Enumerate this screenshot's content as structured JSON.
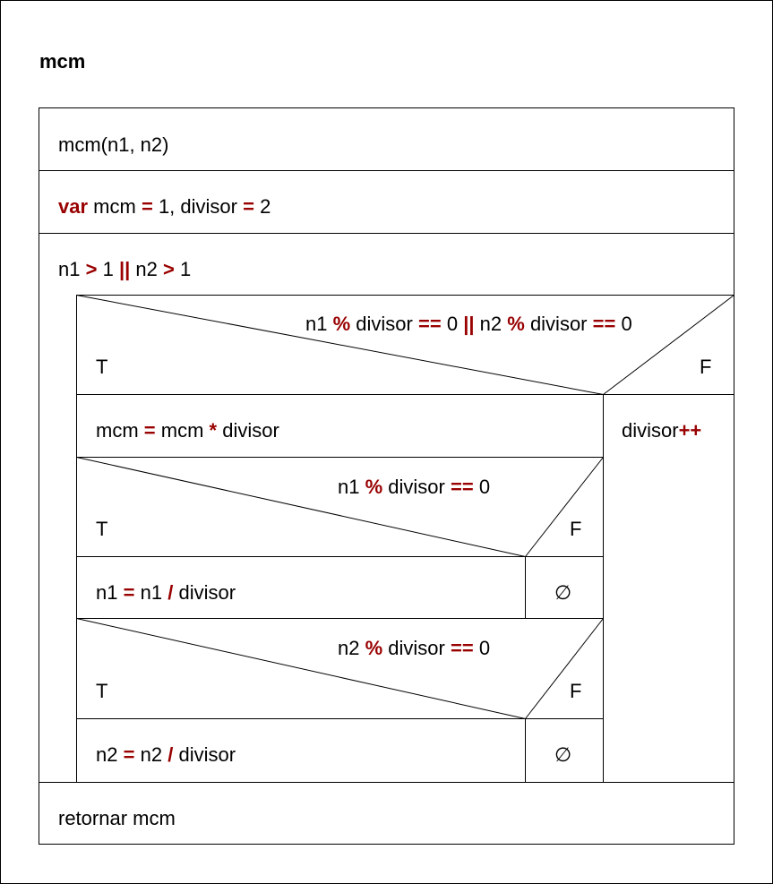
{
  "title": "mcm",
  "ops": {
    "assign": "=",
    "gt": ">",
    "or": "||",
    "mod": "%",
    "eq": "==",
    "mul": "*",
    "div": "/",
    "inc": "++"
  },
  "blocks": {
    "header": "mcm(n1, n2)",
    "decl": {
      "keyword": "var",
      "a": "mcm",
      "b": "1, divisor",
      "c": "2"
    },
    "loop": {
      "a": "n1",
      "b": "1",
      "c": "n2",
      "d": "1"
    },
    "cond1": {
      "a": "n1",
      "b": "divisor",
      "c": "0",
      "d": "n2",
      "e": "divisor",
      "f": "0"
    },
    "assign_mcm": {
      "a": "mcm",
      "b": "mcm",
      "c": "divisor"
    },
    "cond2": {
      "a": "n1",
      "b": "divisor",
      "c": "0"
    },
    "assign_n1": {
      "a": "n1",
      "b": "n1",
      "c": "divisor"
    },
    "cond3": {
      "a": "n2",
      "b": "divisor",
      "c": "0"
    },
    "assign_n2": {
      "a": "n2",
      "b": "n2",
      "c": "divisor"
    },
    "divisor_inc": "divisor",
    "return": "retornar mcm"
  },
  "labels": {
    "true": "T",
    "false": "F",
    "empty": "∅"
  }
}
